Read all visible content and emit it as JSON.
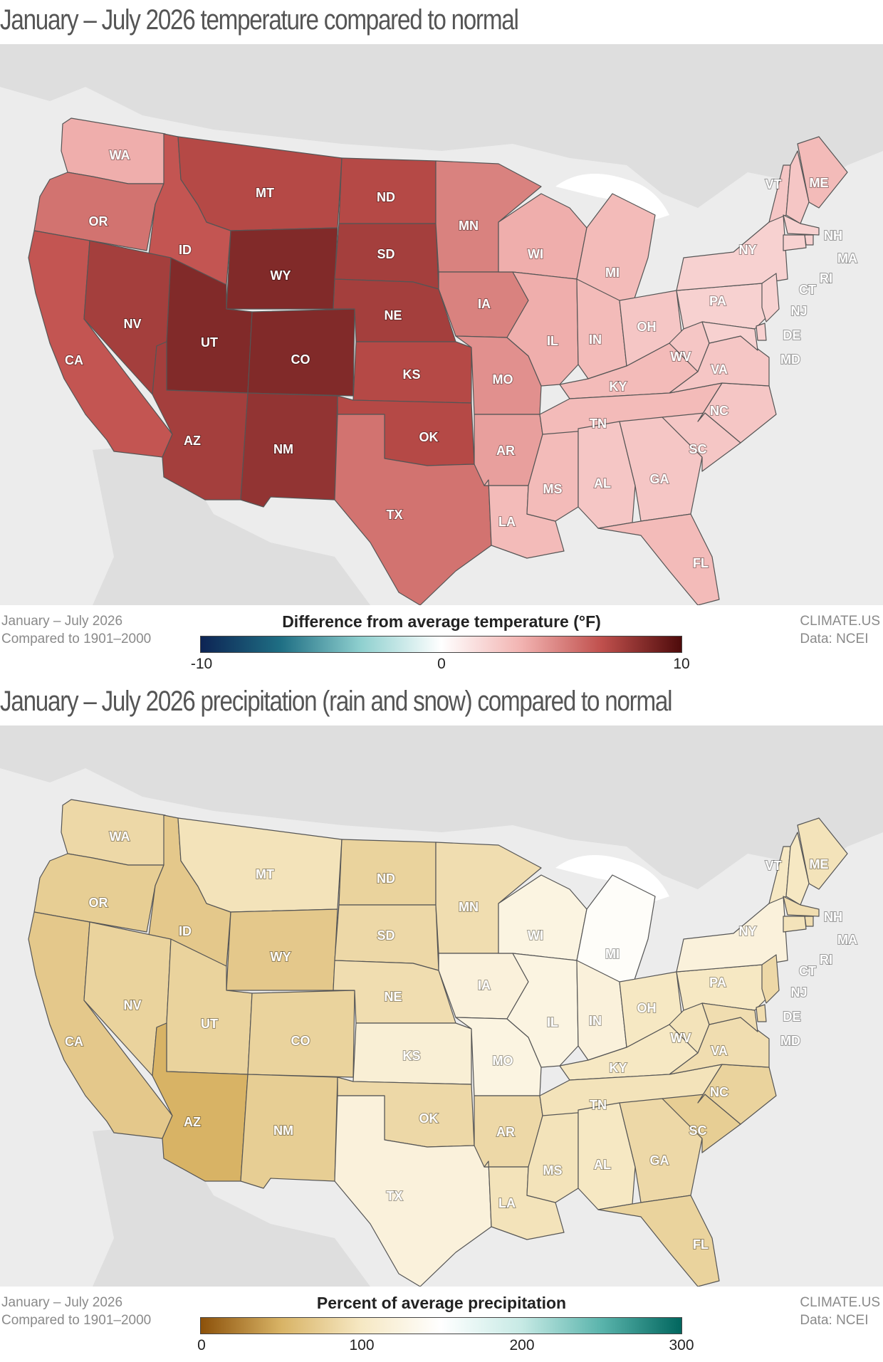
{
  "colors": {
    "temp_scale": [
      "#0d2454",
      "#1f6f84",
      "#8fd0cf",
      "#ffffff",
      "#f2b3b1",
      "#c0504d",
      "#4e0b0b"
    ],
    "precip_scale": [
      "#8c510a",
      "#d8b365",
      "#f6e8c3",
      "#ffffff",
      "#c7eae5",
      "#5ab4ac",
      "#01665e"
    ],
    "map_background": "#ececec",
    "land_outside": "#dedede",
    "state_border": "#555555"
  },
  "states": [
    "WA",
    "OR",
    "CA",
    "ID",
    "NV",
    "MT",
    "WY",
    "UT",
    "AZ",
    "CO",
    "NM",
    "ND",
    "SD",
    "NE",
    "KS",
    "OK",
    "TX",
    "MN",
    "IA",
    "MO",
    "AR",
    "LA",
    "WI",
    "IL",
    "MS",
    "MI",
    "IN",
    "KY",
    "TN",
    "AL",
    "OH",
    "GA",
    "FL",
    "SC",
    "NC",
    "WV",
    "VA",
    "PA",
    "NY",
    "VT",
    "ME",
    "NH",
    "MA",
    "RI",
    "CT",
    "NJ",
    "DE",
    "MD"
  ],
  "temperature_panel": {
    "title": "January – July 2026 temperature compared to normal",
    "footer_left": [
      "January – July 2026",
      "Compared to 1901–2000"
    ],
    "footer_right": [
      "CLIMATE.US",
      "Data: NCEI"
    ],
    "legend_title": "Difference from average temperature (°F)",
    "legend_ticks": [
      "-10",
      "0",
      "10"
    ],
    "legend_range": [
      -10,
      10
    ],
    "state_anomaly_f": {
      "WA": 3.5,
      "OR": 5.5,
      "CA": 6.5,
      "ID": 6.5,
      "NV": 7.5,
      "MT": 7,
      "WY": 8.5,
      "UT": 8.5,
      "AZ": 7.5,
      "CO": 8.5,
      "NM": 8,
      "ND": 7,
      "SD": 7.5,
      "NE": 7.5,
      "KS": 7,
      "OK": 7,
      "TX": 5.5,
      "MN": 5,
      "IA": 5,
      "MO": 4.5,
      "AR": 4,
      "LA": 3,
      "WI": 3.5,
      "IL": 3.5,
      "MS": 3,
      "MI": 3,
      "IN": 3,
      "KY": 3,
      "TN": 3,
      "AL": 2.5,
      "OH": 2.5,
      "GA": 2.5,
      "FL": 3,
      "SC": 2.5,
      "NC": 2.5,
      "WV": 2.5,
      "VA": 2.5,
      "PA": 2,
      "NY": 2,
      "VT": 2.5,
      "ME": 3,
      "NH": 2.5,
      "MA": 2,
      "RI": 2,
      "CT": 2,
      "NJ": 2,
      "DE": 2,
      "MD": 2
    }
  },
  "precipitation_panel": {
    "title": "January – July 2026 precipitation (rain and snow) compared to normal",
    "footer_left": [
      "January – July 2026",
      "Compared to 1901–2000"
    ],
    "footer_right": [
      "CLIMATE.US",
      "Data: NCEI"
    ],
    "legend_title": "Percent of average precipitation",
    "legend_ticks": [
      "0",
      "100",
      "200",
      "300"
    ],
    "legend_range": [
      0,
      300
    ],
    "state_percent": {
      "WA": 85,
      "OR": 75,
      "CA": 70,
      "ID": 70,
      "NV": 80,
      "MT": 95,
      "WY": 70,
      "UT": 80,
      "AZ": 50,
      "CO": 80,
      "NM": 75,
      "ND": 80,
      "SD": 85,
      "NE": 90,
      "KS": 115,
      "OK": 85,
      "TX": 120,
      "MN": 90,
      "IA": 120,
      "MO": 125,
      "AR": 85,
      "LA": 95,
      "WI": 125,
      "IL": 125,
      "MS": 95,
      "MI": 145,
      "IN": 120,
      "KY": 100,
      "TN": 95,
      "AL": 100,
      "OH": 100,
      "GA": 85,
      "FL": 80,
      "SC": 75,
      "NC": 80,
      "WV": 95,
      "VA": 90,
      "PA": 100,
      "NY": 120,
      "VT": 100,
      "ME": 95,
      "NH": 100,
      "MA": 90,
      "RI": 90,
      "CT": 95,
      "NJ": 85,
      "DE": 90,
      "MD": 90
    }
  }
}
